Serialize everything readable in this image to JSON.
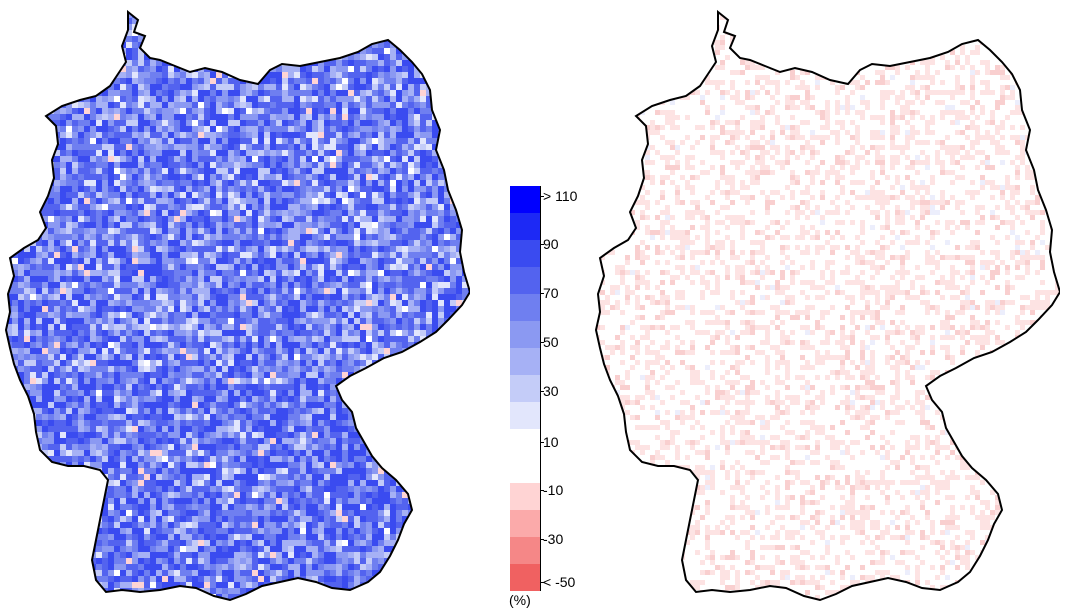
{
  "legend": {
    "unit": "(%)",
    "labels": [
      "> 110",
      "90",
      "70",
      "50",
      "30",
      "10",
      "-10",
      "-30",
      "< -50"
    ],
    "colors": {
      "positive": [
        "#0000ff",
        "#1d29f5",
        "#3a4bf0",
        "#5363ef",
        "#6f7ff0",
        "#8b99f2",
        "#a6b1f5",
        "#c4ccf8",
        "#e2e6fc"
      ],
      "neutral": "#ffffff",
      "negative": [
        "#ffd4d4",
        "#fbaaaa",
        "#f58787",
        "#f06161"
      ]
    }
  },
  "maps": [
    {
      "name": "left",
      "bias": "strong-positive"
    },
    {
      "name": "right",
      "bias": "weak-negative"
    }
  ]
}
